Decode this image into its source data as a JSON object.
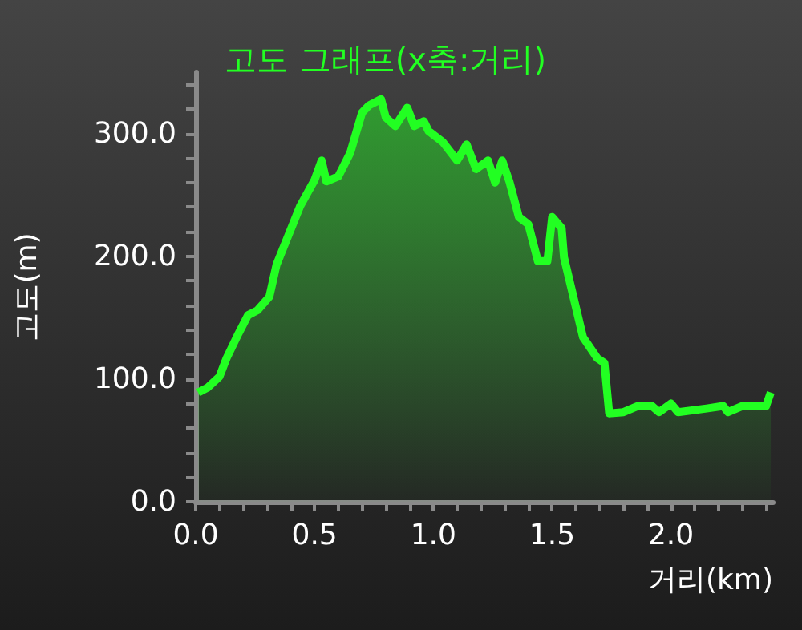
{
  "chart_data": {
    "type": "area",
    "title": "고도 그래프(x축:거리)",
    "xlabel": "거리(km)",
    "ylabel": "고도(m)",
    "x": [
      0.01,
      0.05,
      0.1,
      0.13,
      0.18,
      0.22,
      0.26,
      0.31,
      0.34,
      0.39,
      0.44,
      0.5,
      0.53,
      0.55,
      0.6,
      0.65,
      0.7,
      0.73,
      0.78,
      0.8,
      0.84,
      0.89,
      0.92,
      0.96,
      0.98,
      1.04,
      1.1,
      1.14,
      1.18,
      1.23,
      1.26,
      1.29,
      1.32,
      1.36,
      1.4,
      1.44,
      1.48,
      1.5,
      1.54,
      1.55,
      1.63,
      1.69,
      1.72,
      1.74,
      1.8,
      1.86,
      1.92,
      1.95,
      2.0,
      2.03,
      2.15,
      2.22,
      2.24,
      2.3,
      2.4,
      2.42
    ],
    "series": [
      {
        "color": "#22ff22",
        "values": [
          89,
          93,
          102,
          117,
          137,
          152,
          156,
          167,
          193,
          217,
          241,
          262,
          278,
          261,
          265,
          284,
          317,
          323,
          328,
          313,
          306,
          321,
          306,
          310,
          302,
          293,
          278,
          291,
          271,
          278,
          260,
          278,
          261,
          232,
          226,
          196,
          196,
          232,
          223,
          199,
          134,
          117,
          113,
          72,
          73,
          78,
          78,
          73,
          80,
          73,
          76,
          78,
          73,
          78,
          78,
          89
        ]
      }
    ],
    "xlim": [
      0,
      2.43
    ],
    "xticks": [
      {
        "value": 0,
        "label": "0.0"
      },
      {
        "value": 0.1,
        "label": null
      },
      {
        "value": 0.2,
        "label": null
      },
      {
        "value": 0.3,
        "label": null
      },
      {
        "value": 0.4,
        "label": null
      },
      {
        "value": 0.5,
        "label": "0.5"
      },
      {
        "value": 0.6,
        "label": null
      },
      {
        "value": 0.7,
        "label": null
      },
      {
        "value": 0.8,
        "label": null
      },
      {
        "value": 0.9,
        "label": null
      },
      {
        "value": 1,
        "label": "1.0"
      },
      {
        "value": 1.1,
        "label": null
      },
      {
        "value": 1.2,
        "label": null
      },
      {
        "value": 1.3,
        "label": null
      },
      {
        "value": 1.4,
        "label": null
      },
      {
        "value": 1.5,
        "label": "1.5"
      },
      {
        "value": 1.6,
        "label": null
      },
      {
        "value": 1.7,
        "label": null
      },
      {
        "value": 1.8,
        "label": null
      },
      {
        "value": 1.9,
        "label": null
      },
      {
        "value": 2,
        "label": "2.0"
      },
      {
        "value": 2.1,
        "label": null
      },
      {
        "value": 2.2,
        "label": null
      },
      {
        "value": 2.3,
        "label": null
      },
      {
        "value": 2.4,
        "label": null
      }
    ],
    "ylim": [
      0,
      350
    ],
    "yticks": [
      {
        "value": 0,
        "label": "0.0"
      },
      {
        "value": 20,
        "label": null
      },
      {
        "value": 40,
        "label": null
      },
      {
        "value": 60,
        "label": null
      },
      {
        "value": 80,
        "label": null
      },
      {
        "value": 100,
        "label": "100.0"
      },
      {
        "value": 120,
        "label": null
      },
      {
        "value": 140,
        "label": null
      },
      {
        "value": 160,
        "label": null
      },
      {
        "value": 180,
        "label": null
      },
      {
        "value": 200,
        "label": "200.0"
      },
      {
        "value": 220,
        "label": null
      },
      {
        "value": 240,
        "label": null
      },
      {
        "value": 260,
        "label": null
      },
      {
        "value": 280,
        "label": null
      },
      {
        "value": 300,
        "label": "300.0"
      },
      {
        "value": 320,
        "label": null
      },
      {
        "value": 340,
        "label": null
      }
    ],
    "grid": false,
    "marker": "none"
  }
}
